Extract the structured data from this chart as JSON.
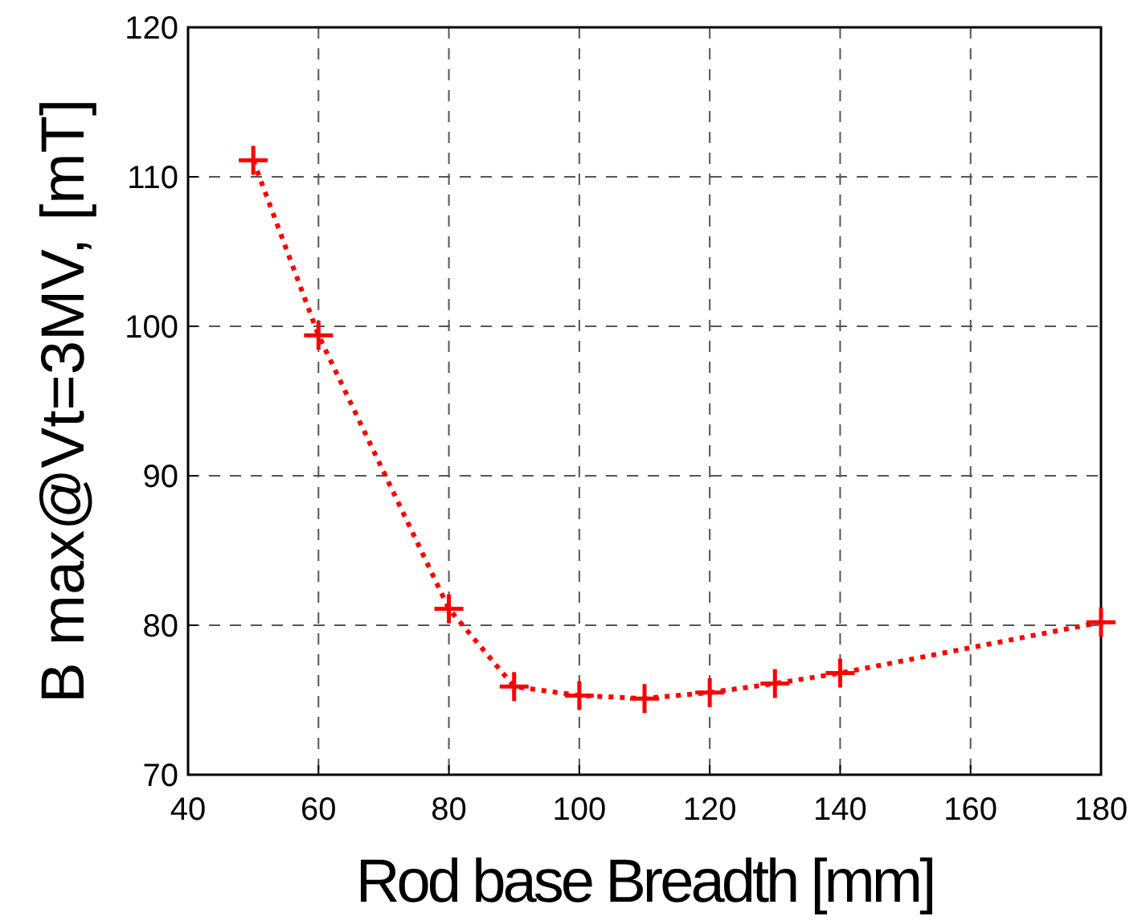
{
  "chart_data": {
    "type": "line",
    "xlabel": "Rod base Breadth [mm]",
    "ylabel": "B max@Vt=3MV, [mT]",
    "x": [
      50,
      60,
      80,
      90,
      100,
      110,
      120,
      130,
      140,
      180
    ],
    "series": [
      {
        "color": "#ff0000",
        "values": [
          111.1,
          99.4,
          81.1,
          75.9,
          75.3,
          75.1,
          75.5,
          76.1,
          76.8,
          80.2
        ]
      }
    ],
    "xlim": [
      40,
      180
    ],
    "xticks": [
      40,
      60,
      80,
      100,
      120,
      140,
      160,
      180
    ],
    "ylim": [
      70,
      120
    ],
    "yticks": [
      70,
      80,
      90,
      100,
      110,
      120
    ],
    "grid": true,
    "marker": "cross",
    "line_style": "dotted"
  }
}
